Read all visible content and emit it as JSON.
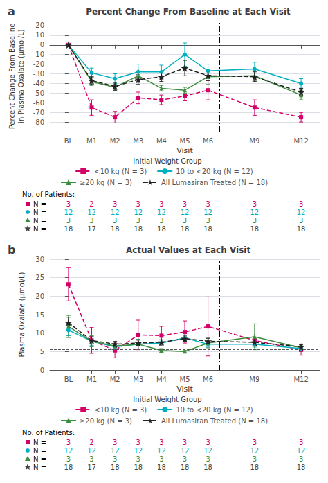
{
  "chart_data": [
    {
      "type": "line",
      "panel_label": "a",
      "title": "Percent Change From Baseline at Each Visit",
      "xlabel": "Visit",
      "ylabel": "Percent Change From Baseline\nin Plasma Oxalate (μmol/L)",
      "x": [
        0,
        1,
        2,
        3,
        4,
        5,
        6,
        8,
        10
      ],
      "xlim": [
        -0.8,
        10.8
      ],
      "xticks": [
        {
          "value": 0,
          "label": "BL"
        },
        {
          "value": 1,
          "label": "M1"
        },
        {
          "value": 2,
          "label": "M2"
        },
        {
          "value": 3,
          "label": "M3"
        },
        {
          "value": 4,
          "label": "M4"
        },
        {
          "value": 5,
          "label": "M5"
        },
        {
          "value": 6,
          "label": "M6"
        },
        {
          "value": 8,
          "label": "M9"
        },
        {
          "value": 10,
          "label": "M12"
        }
      ],
      "ylim": [
        -90,
        25
      ],
      "yticks": [
        -80,
        -70,
        -60,
        -50,
        -40,
        -30,
        -20,
        -10,
        0,
        10,
        20
      ],
      "grid": true,
      "legend": "bottom",
      "legend_title": "Initial Weight Group",
      "vline": {
        "x": 6.5,
        "color": "#000000",
        "line_style": "dashdot"
      },
      "series": [
        {
          "name": "<10 kg (N = 3)",
          "color": "#d4006a",
          "marker": "square",
          "line_style": "dashed",
          "values": [
            0,
            -65,
            -75,
            -55,
            -57,
            -53,
            -47,
            -65,
            -75
          ],
          "yerr": [
            0,
            8,
            6,
            6,
            5,
            5,
            10,
            8,
            5
          ]
        },
        {
          "name": "10 to <20 kg (N = 12)",
          "color": "#00afc0",
          "marker": "circle",
          "line_style": "solid",
          "values": [
            0,
            -29,
            -35,
            -28,
            -28,
            -10,
            -27,
            -25,
            -40
          ],
          "yerr": [
            0,
            5,
            5,
            8,
            7,
            12,
            7,
            7,
            5
          ]
        },
        {
          "name": "≥20 kg (N = 3)",
          "color": "#3a8c3a",
          "marker": "triangle",
          "line_style": "solid",
          "values": [
            0,
            -38,
            -44,
            -32,
            -45,
            -47,
            -33,
            -32,
            -52
          ],
          "yerr": [
            0,
            4,
            3,
            7,
            3,
            3,
            8,
            5,
            5
          ]
        },
        {
          "name": "All Lumasiran Treated (N = 18)",
          "color": "#222222",
          "marker": "star",
          "line_style": "dashed",
          "values": [
            0,
            -37,
            -43,
            -36,
            -33,
            -24,
            -32,
            -33,
            -49
          ],
          "yerr": [
            0,
            4,
            4,
            5,
            5,
            8,
            5,
            5,
            4
          ]
        }
      ],
      "n_table": {
        "title": "No. of Patients:",
        "rows": [
          {
            "label": "N =",
            "color": "#d4006a",
            "marker": "square",
            "values": [
              3,
              2,
              3,
              3,
              3,
              3,
              3,
              3,
              3
            ]
          },
          {
            "label": "N =",
            "color": "#00afc0",
            "marker": "circle",
            "values": [
              12,
              12,
              12,
              12,
              12,
              12,
              12,
              12,
              12
            ]
          },
          {
            "label": "N =",
            "color": "#3a8c3a",
            "marker": "triangle",
            "values": [
              3,
              3,
              3,
              3,
              3,
              3,
              3,
              3,
              3
            ]
          },
          {
            "label": "N =",
            "color": "#444444",
            "marker": "star",
            "values": [
              18,
              17,
              18,
              18,
              18,
              18,
              18,
              18,
              18
            ]
          }
        ]
      }
    },
    {
      "type": "line",
      "panel_label": "b",
      "title": "Actual Values at Each Visit",
      "xlabel": "Visit",
      "ylabel": "Plasma Oxalate (μmol/L)",
      "x": [
        0,
        1,
        2,
        3,
        4,
        5,
        6,
        8,
        10
      ],
      "xlim": [
        -0.8,
        10.8
      ],
      "xticks": [
        {
          "value": 0,
          "label": "BL"
        },
        {
          "value": 1,
          "label": "M1"
        },
        {
          "value": 2,
          "label": "M2"
        },
        {
          "value": 3,
          "label": "M3"
        },
        {
          "value": 4,
          "label": "M4"
        },
        {
          "value": 5,
          "label": "M5"
        },
        {
          "value": 6,
          "label": "M6"
        },
        {
          "value": 8,
          "label": "M9"
        },
        {
          "value": 10,
          "label": "M12"
        }
      ],
      "ylim": [
        0,
        30
      ],
      "yticks": [
        0,
        5,
        10,
        15,
        20,
        25,
        30
      ],
      "grid": true,
      "legend": "bottom",
      "legend_title": "Initial Weight Group",
      "vline": {
        "x": 6.5,
        "color": "#000000",
        "line_style": "dashdot"
      },
      "hline": {
        "y": 5.6,
        "color": "#555555",
        "line_style": "dashed"
      },
      "series": [
        {
          "name": "<10 kg (N = 3)",
          "color": "#d4006a",
          "marker": "square",
          "line_style": "dashed",
          "values": [
            23.2,
            8.0,
            5.3,
            9.5,
            9.3,
            10.3,
            11.8,
            8.0,
            5.5
          ],
          "yerr": [
            4.5,
            3.5,
            2.0,
            4.0,
            2.5,
            3.0,
            8.0,
            1.5,
            1.5
          ]
        },
        {
          "name": "10 to <20 kg (N = 12)",
          "color": "#00afc0",
          "marker": "circle",
          "line_style": "solid",
          "values": [
            10.8,
            7.8,
            6.3,
            7.0,
            7.3,
            8.7,
            7.0,
            7.0,
            5.8
          ],
          "yerr": [
            1.5,
            1.2,
            0.7,
            1.3,
            0.8,
            0.8,
            0.8,
            0.8,
            0.5
          ]
        },
        {
          "name": "≥20 kg (N = 3)",
          "color": "#3a8c3a",
          "marker": "triangle",
          "line_style": "solid",
          "values": [
            11.8,
            7.8,
            6.5,
            7.0,
            5.3,
            5.0,
            7.3,
            9.0,
            6.0
          ],
          "yerr": [
            3.0,
            1.5,
            1.2,
            1.3,
            0.5,
            0.3,
            1.3,
            3.5,
            1.0
          ]
        },
        {
          "name": "All Lumasiran Treated (N = 18)",
          "color": "#222222",
          "marker": "star",
          "line_style": "dashed",
          "values": [
            12.8,
            8.0,
            7.0,
            7.3,
            7.5,
            8.5,
            7.8,
            7.5,
            6.3
          ],
          "yerr": [
            1.5,
            1.0,
            0.7,
            0.8,
            0.7,
            0.7,
            0.8,
            0.8,
            0.5
          ]
        }
      ],
      "n_table": {
        "title": "No. of Patients:",
        "rows": [
          {
            "label": "N =",
            "color": "#d4006a",
            "marker": "square",
            "values": [
              3,
              2,
              3,
              3,
              3,
              3,
              3,
              3,
              3
            ]
          },
          {
            "label": "N =",
            "color": "#00afc0",
            "marker": "circle",
            "values": [
              12,
              12,
              12,
              12,
              12,
              12,
              12,
              12,
              12
            ]
          },
          {
            "label": "N =",
            "color": "#3a8c3a",
            "marker": "triangle",
            "values": [
              3,
              3,
              3,
              3,
              3,
              3,
              3,
              3,
              3
            ]
          },
          {
            "label": "N =",
            "color": "#444444",
            "marker": "star",
            "values": [
              18,
              17,
              18,
              18,
              18,
              18,
              18,
              18,
              18
            ]
          }
        ]
      }
    }
  ]
}
